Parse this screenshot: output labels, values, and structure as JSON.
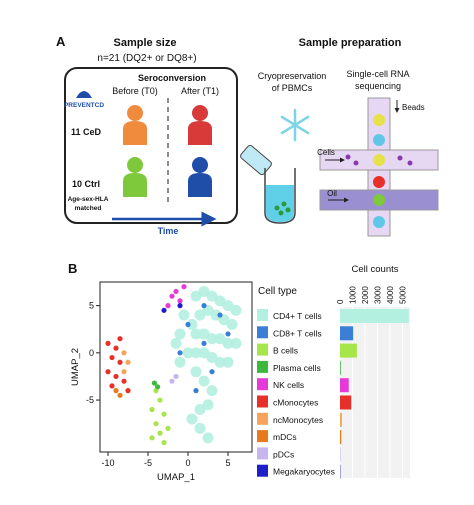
{
  "panel_a": {
    "label": "A",
    "sample_size": {
      "title": "Sample size",
      "n": "n=21 (DQ2+ or DQ8+)",
      "seroconversion": "Seroconversion",
      "before": "Before (T0)",
      "after": "After (T1)",
      "logo": "PREVENTCD",
      "ced": "11 CeD",
      "ctrl": "10 Ctrl",
      "matched": [
        "Age-sex-HLA",
        "matched"
      ],
      "time": "Time"
    },
    "sample_preparation": {
      "title": "Sample preparation",
      "cryo": [
        "Cryopreservation",
        "of PBMCs"
      ],
      "scrna": [
        "Single-cell RNA",
        "sequencing"
      ],
      "beads": "Beads",
      "cells": "Cells",
      "oil": "Oil"
    }
  },
  "panel_b_label": "B",
  "chart_data": [
    {
      "type": "scatter",
      "x_label": "UMAP_1",
      "y_label": "UMAP_2",
      "legend_title": "Cell type",
      "xlim": [
        -11,
        8
      ],
      "ylim": [
        -10.5,
        7.5
      ],
      "xticks": [
        -10,
        -5,
        0,
        5
      ],
      "yticks": [
        -5,
        0,
        5
      ],
      "series": [
        {
          "name": "CD4+ T cells",
          "color": "#b3f0e0",
          "x": [
            1,
            2,
            3,
            4,
            5,
            6,
            1.5,
            2.5,
            3.5,
            4.5,
            5.5,
            0.5,
            1,
            2,
            3,
            4,
            5,
            6,
            0,
            1,
            2,
            3,
            4,
            5,
            -1,
            -0.5,
            1,
            2,
            3,
            2.5,
            1.5,
            -1.5,
            -1,
            0.5,
            1.5,
            2.5
          ],
          "values": [
            6,
            6.5,
            6,
            5.5,
            5,
            4.5,
            4,
            4.5,
            4,
            3.5,
            3,
            3,
            2,
            2,
            1.5,
            1.5,
            1,
            1,
            0,
            0,
            0,
            -0.5,
            -1,
            -1,
            2,
            4,
            -2,
            -3,
            -4,
            -5.5,
            -6,
            1,
            -1,
            -7,
            -8,
            -9
          ]
        },
        {
          "name": "CD8+ T cells",
          "color": "#3a7fd5",
          "x": [
            0,
            2,
            4,
            3,
            1,
            -1,
            5,
            2
          ],
          "values": [
            3,
            1,
            4,
            -2,
            -4,
            0,
            2,
            5
          ]
        },
        {
          "name": "B cells",
          "color": "#a6e64a",
          "x": [
            -4,
            -3.5,
            -4.5,
            -3,
            -4,
            -3.5,
            -4.5,
            -3,
            -2.5
          ],
          "values": [
            -4,
            -5,
            -6,
            -6.5,
            -7.5,
            -8.5,
            -9,
            -9.5,
            -8
          ]
        },
        {
          "name": "Plasma cells",
          "color": "#3cb83c",
          "x": [
            -4.2,
            -3.8
          ],
          "values": [
            -3.2,
            -3.6
          ]
        },
        {
          "name": "NK cells",
          "color": "#e53ad8",
          "x": [
            -2,
            -1.5,
            -1,
            -2.5,
            -0.5
          ],
          "values": [
            6,
            6.5,
            5.5,
            5,
            7
          ]
        },
        {
          "name": "cMonocytes",
          "color": "#e8302a",
          "x": [
            -10,
            -9,
            -9.5,
            -8.5,
            -10,
            -9,
            -8,
            -9.5,
            -8.5,
            -7.5
          ],
          "values": [
            1,
            0.5,
            -0.5,
            -1,
            -2,
            -2.5,
            -3,
            -3.5,
            1.5,
            -4
          ]
        },
        {
          "name": "ncMonocytes",
          "color": "#f7a35c",
          "x": [
            -8,
            -7.5,
            -8
          ],
          "values": [
            0,
            -1,
            -2
          ]
        },
        {
          "name": "mDCs",
          "color": "#e87a1e",
          "x": [
            -9,
            -8.5
          ],
          "values": [
            -4,
            -4.5
          ]
        },
        {
          "name": "pDCs",
          "color": "#c7b5ef",
          "x": [
            -2,
            -1.5
          ],
          "values": [
            -3,
            -2.5
          ]
        },
        {
          "name": "Megakaryocytes",
          "color": "#1f1fc9",
          "x": [
            -1,
            -3
          ],
          "values": [
            5,
            4.5
          ]
        }
      ]
    },
    {
      "type": "bar",
      "orientation": "horizontal",
      "title": "Cell counts",
      "xlim": [
        0,
        5600
      ],
      "xticks": [
        0,
        1000,
        2000,
        3000,
        4000,
        5000
      ],
      "grid": true,
      "values": [
        5500,
        1050,
        1350,
        60,
        700,
        900,
        150,
        100,
        40,
        30
      ]
    }
  ]
}
